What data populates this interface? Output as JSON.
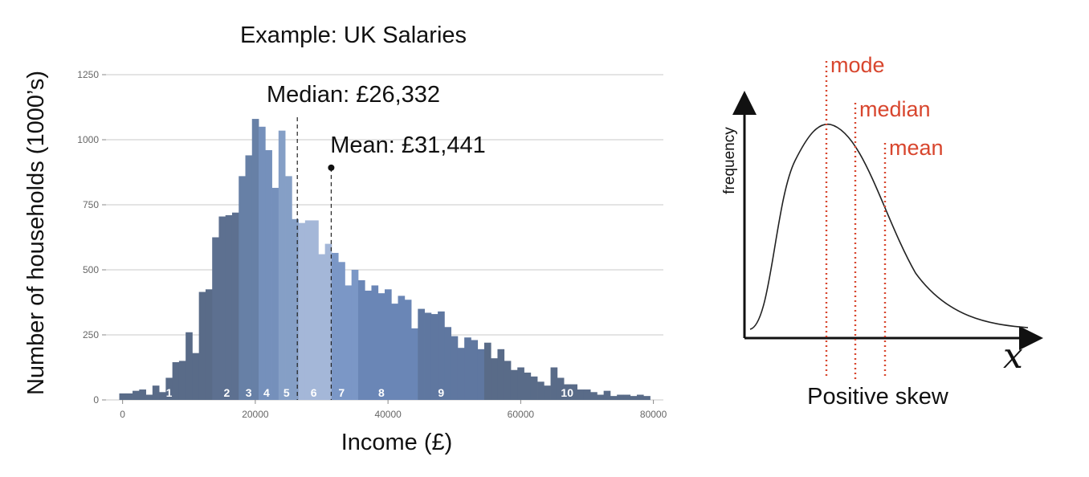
{
  "chart_data": [
    {
      "type": "bar",
      "title": "Example: UK Salaries",
      "xlabel": "Income (£)",
      "ylabel": "Number of households (1000’s)",
      "xlim": [
        -2500,
        81500
      ],
      "ylim": [
        0,
        1250
      ],
      "x_ticks": [
        "0",
        "20000",
        "40000",
        "60000",
        "80000"
      ],
      "y_ticks": [
        "0",
        "250",
        "500",
        "750",
        "1000",
        "1250"
      ],
      "grid": "horizontal",
      "bin_width": 1000,
      "bin_starts": [
        -500,
        500,
        1500,
        2500,
        3500,
        4500,
        5500,
        6500,
        7500,
        8500,
        9500,
        10500,
        11500,
        12500,
        13500,
        14500,
        15500,
        16500,
        17500,
        18500,
        19500,
        20500,
        21500,
        22500,
        23500,
        24500,
        25500,
        26500,
        27500,
        28500,
        29500,
        30500,
        31500,
        32500,
        33500,
        34500,
        35500,
        36500,
        37500,
        38500,
        39500,
        40500,
        41500,
        42500,
        43500,
        44500,
        45500,
        46500,
        47500,
        48500,
        49500,
        50500,
        51500,
        52500,
        53500,
        54500,
        55500,
        56500,
        57500,
        58500,
        59500,
        60500,
        61500,
        62500,
        63500,
        64500,
        65500,
        66500,
        67500,
        68500,
        69500,
        70500,
        71500,
        72500,
        73500,
        74500,
        75500,
        76500,
        77500,
        78500
      ],
      "values": [
        25,
        25,
        35,
        40,
        20,
        55,
        30,
        85,
        145,
        150,
        260,
        180,
        415,
        425,
        625,
        705,
        710,
        720,
        860,
        940,
        1080,
        1050,
        960,
        815,
        1035,
        860,
        695,
        680,
        690,
        690,
        560,
        600,
        565,
        530,
        440,
        500,
        460,
        420,
        440,
        410,
        425,
        370,
        400,
        385,
        275,
        350,
        335,
        330,
        340,
        280,
        245,
        200,
        240,
        230,
        195,
        220,
        160,
        195,
        150,
        115,
        125,
        105,
        90,
        70,
        55,
        125,
        85,
        60,
        60,
        40,
        40,
        30,
        20,
        35,
        15,
        20,
        20,
        15,
        20,
        15
      ],
      "bin_colors": [
        "#596b88",
        "#596b88",
        "#596b88",
        "#596b88",
        "#596b88",
        "#596b88",
        "#596b88",
        "#596b88",
        "#596b88",
        "#596b88",
        "#596b88",
        "#596b88",
        "#596b88",
        "#596b88",
        "#5d7090",
        "#5d7090",
        "#5d7090",
        "#5d7090",
        "#6780a6",
        "#6780a6",
        "#6780a6",
        "#7590bb",
        "#7590bb",
        "#7590bb",
        "#859fc6",
        "#859fc6",
        "#859fc6",
        "#a4b7d8",
        "#a4b7d8",
        "#a4b7d8",
        "#a4b7d8",
        "#a4b7d8",
        "#7b97c6",
        "#7b97c6",
        "#7b97c6",
        "#7b97c6",
        "#6a86b6",
        "#6a86b6",
        "#6a86b6",
        "#6a86b6",
        "#6a86b6",
        "#6a86b6",
        "#6a86b6",
        "#6a86b6",
        "#6a86b6",
        "#5f77a0",
        "#5f77a0",
        "#5f77a0",
        "#5f77a0",
        "#5f77a0",
        "#5f77a0",
        "#5f77a0",
        "#5f77a0",
        "#5f77a0",
        "#5f77a0",
        "#596b88",
        "#596b88",
        "#596b88",
        "#596b88",
        "#596b88",
        "#596b88",
        "#596b88",
        "#596b88",
        "#596b88",
        "#596b88",
        "#596b88",
        "#596b88",
        "#596b88",
        "#596b88",
        "#596b88",
        "#596b88",
        "#596b88",
        "#596b88",
        "#596b88",
        "#596b88",
        "#596b88",
        "#596b88",
        "#596b88",
        "#596b88",
        "#596b88"
      ],
      "decile_labels": [
        {
          "text": "1",
          "x": 7000
        },
        {
          "text": "2",
          "x": 15700
        },
        {
          "text": "3",
          "x": 19000
        },
        {
          "text": "4",
          "x": 21700
        },
        {
          "text": "5",
          "x": 24700
        },
        {
          "text": "6",
          "x": 28800
        },
        {
          "text": "7",
          "x": 33000
        },
        {
          "text": "8",
          "x": 39000
        },
        {
          "text": "9",
          "x": 48000
        },
        {
          "text": "10",
          "x": 67000
        }
      ],
      "annotations": {
        "median": {
          "text": "Median: £26,332",
          "value": 26332
        },
        "mean": {
          "text": "Mean: £31,441",
          "value": 31441
        }
      }
    },
    {
      "type": "line",
      "caption": "Positive skew",
      "ylabel": "frequency",
      "xlabel": "x",
      "markers": [
        {
          "text": "mode",
          "color": "#d8462e"
        },
        {
          "text": "median",
          "color": "#d8462e"
        },
        {
          "text": "mean",
          "color": "#d8462e"
        }
      ]
    }
  ],
  "colors": {
    "axis_text": "#666666",
    "grid": "#c8c8c8",
    "marker_red": "#d8462e",
    "curve": "#222222"
  }
}
